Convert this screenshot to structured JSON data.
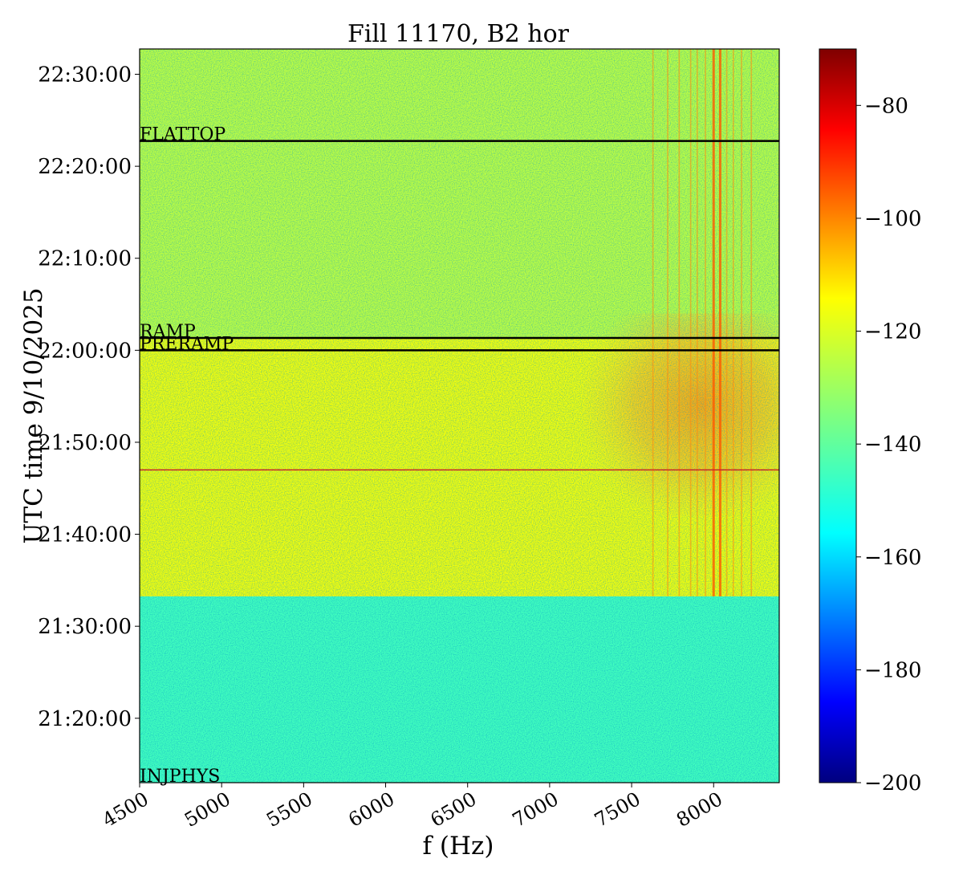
{
  "chart_data": {
    "type": "heatmap",
    "title": "Fill 11170, B2 hor",
    "xlabel": "f (Hz)",
    "ylabel": "UTC time 9/10/2025",
    "xlim": [
      4500,
      8400
    ],
    "ylim_time": [
      "21:13:00",
      "22:32:45"
    ],
    "x_ticks": [
      4500,
      5000,
      5500,
      6000,
      6500,
      7000,
      7500,
      8000
    ],
    "x_tick_labels": [
      "4500",
      "5000",
      "5500",
      "6000",
      "6500",
      "7000",
      "7500",
      "8000"
    ],
    "y_ticks": [
      "21:20:00",
      "21:30:00",
      "21:40:00",
      "21:50:00",
      "22:00:00",
      "22:10:00",
      "22:20:00",
      "22:30:00"
    ],
    "colormap": "jet",
    "colorbar": {
      "range": [
        -200,
        -70
      ],
      "ticks": [
        -80,
        -100,
        -120,
        -140,
        -160,
        -180,
        -200
      ],
      "tick_labels": [
        "−80",
        "−100",
        "−120",
        "−140",
        "−160",
        "−180",
        "−200"
      ]
    },
    "regions": [
      {
        "from": "21:13:00",
        "to": "21:33:15",
        "level_db": -143
      },
      {
        "from": "21:33:15",
        "to": "22:01:20",
        "level_db": -120
      },
      {
        "from": "22:01:20",
        "to": "22:32:45",
        "level_db": -127
      }
    ],
    "hot_spot": {
      "f_range": [
        7150,
        8400
      ],
      "time_range": [
        "21:42:00",
        "22:04:00"
      ],
      "level_db": -106
    },
    "spectral_lines_hz": [
      7630,
      7720,
      7790,
      7860,
      7900,
      7950,
      8000,
      8040,
      8080,
      8120,
      8170,
      8230
    ],
    "event_lines": [
      {
        "label": "FLATTOP",
        "time": "22:22:45",
        "color": "#000000"
      },
      {
        "label": "RAMP",
        "time": "22:01:20",
        "color": "#000000"
      },
      {
        "label": "PRERAMP",
        "time": "22:00:00",
        "color": "#000000"
      },
      {
        "label": "",
        "time": "21:47:00",
        "color": "#c62828"
      },
      {
        "label": "INJPHYS",
        "time": "21:13:00",
        "color": "#000000"
      }
    ],
    "grid": false,
    "legend": "none"
  }
}
